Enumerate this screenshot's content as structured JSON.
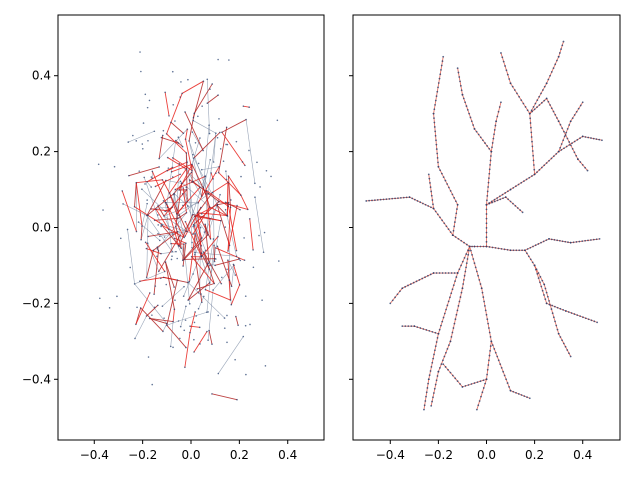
{
  "figure": {
    "background": "#ffffff"
  },
  "colors": {
    "node": "#1f3b6b",
    "edge_light": "#7f8fa6",
    "edge_strong": "#b22222",
    "edge_red": "#e8201a",
    "tree_edge": "#e05a4a"
  },
  "chart_data": [
    {
      "type": "network",
      "panel": "left",
      "title": "",
      "xlabel": "",
      "ylabel": "",
      "xlim": [
        -0.55,
        0.55
      ],
      "ylim": [
        -0.56,
        0.56
      ],
      "xticks": [
        -0.4,
        -0.2,
        0.0,
        0.2,
        0.4
      ],
      "xtick_labels": [
        "−0.4",
        "−0.2",
        "0.0",
        "0.2",
        "0.4"
      ],
      "yticks": [
        -0.4,
        -0.2,
        0.0,
        0.2,
        0.4
      ],
      "ytick_labels": [
        "−0.4",
        "−0.2",
        "0.0",
        "0.2",
        "0.4"
      ],
      "grid": false,
      "description_points": {
        "extent_x": [
          -0.5,
          0.5
        ],
        "extent_y": [
          -0.5,
          0.5
        ],
        "approx_edges": 1400
      }
    },
    {
      "type": "network",
      "panel": "right",
      "title": "",
      "xlabel": "",
      "ylabel": "",
      "xlim": [
        -0.555,
        0.555
      ],
      "ylim": [
        -0.56,
        0.56
      ],
      "shared_y": true,
      "xticks": [
        -0.4,
        -0.2,
        0.0,
        0.2,
        0.4
      ],
      "xtick_labels": [
        "−0.4",
        "−0.2",
        "0.0",
        "0.2",
        "0.4"
      ],
      "grid": false,
      "tree_root": [
        0.0,
        -0.05
      ],
      "branches": [
        [
          [
            0.0,
            -0.05
          ],
          [
            -0.05,
            -0.05
          ],
          [
            -0.07,
            -0.05
          ]
        ],
        [
          [
            -0.07,
            -0.05
          ],
          [
            -0.12,
            -0.12
          ],
          [
            -0.2,
            -0.28
          ],
          [
            -0.24,
            -0.4
          ],
          [
            -0.26,
            -0.48
          ]
        ],
        [
          [
            -0.2,
            -0.28
          ],
          [
            -0.3,
            -0.26
          ],
          [
            -0.35,
            -0.26
          ]
        ],
        [
          [
            -0.12,
            -0.12
          ],
          [
            -0.22,
            -0.12
          ],
          [
            -0.35,
            -0.16
          ],
          [
            -0.4,
            -0.2
          ]
        ],
        [
          [
            -0.07,
            -0.05
          ],
          [
            -0.14,
            -0.02
          ],
          [
            -0.22,
            0.05
          ],
          [
            -0.32,
            0.08
          ],
          [
            -0.5,
            0.07
          ]
        ],
        [
          [
            -0.22,
            0.05
          ],
          [
            -0.24,
            0.14
          ]
        ],
        [
          [
            -0.14,
            -0.02
          ],
          [
            -0.12,
            0.06
          ],
          [
            -0.2,
            0.16
          ],
          [
            -0.22,
            0.3
          ],
          [
            -0.18,
            0.45
          ]
        ],
        [
          [
            -0.07,
            -0.05
          ],
          [
            -0.1,
            -0.16
          ],
          [
            -0.15,
            -0.3
          ],
          [
            -0.2,
            -0.38
          ],
          [
            -0.23,
            -0.47
          ]
        ],
        [
          [
            0.0,
            -0.05
          ],
          [
            0.0,
            0.06
          ],
          [
            0.02,
            0.2
          ],
          [
            0.04,
            0.28
          ],
          [
            0.06,
            0.33
          ]
        ],
        [
          [
            0.02,
            0.2
          ],
          [
            -0.05,
            0.26
          ],
          [
            -0.1,
            0.35
          ],
          [
            -0.12,
            0.42
          ]
        ],
        [
          [
            0.0,
            0.06
          ],
          [
            0.08,
            0.08
          ],
          [
            0.15,
            0.04
          ]
        ],
        [
          [
            0.0,
            -0.05
          ],
          [
            0.1,
            -0.06
          ],
          [
            0.16,
            -0.06
          ],
          [
            0.2,
            -0.1
          ],
          [
            0.24,
            -0.15
          ],
          [
            0.3,
            -0.28
          ],
          [
            0.35,
            -0.34
          ]
        ],
        [
          [
            0.16,
            -0.06
          ],
          [
            0.26,
            -0.03
          ],
          [
            0.35,
            -0.04
          ],
          [
            0.47,
            -0.03
          ]
        ],
        [
          [
            0.2,
            -0.1
          ],
          [
            0.25,
            -0.2
          ],
          [
            0.33,
            -0.22
          ],
          [
            0.46,
            -0.25
          ]
        ],
        [
          [
            0.0,
            0.06
          ],
          [
            0.1,
            0.1
          ],
          [
            0.2,
            0.14
          ],
          [
            0.3,
            0.2
          ],
          [
            0.4,
            0.24
          ],
          [
            0.48,
            0.23
          ]
        ],
        [
          [
            0.3,
            0.2
          ],
          [
            0.35,
            0.28
          ],
          [
            0.4,
            0.33
          ]
        ],
        [
          [
            0.2,
            0.14
          ],
          [
            0.18,
            0.3
          ],
          [
            0.1,
            0.38
          ],
          [
            0.06,
            0.46
          ]
        ],
        [
          [
            0.18,
            0.3
          ],
          [
            0.25,
            0.38
          ],
          [
            0.3,
            0.45
          ],
          [
            0.32,
            0.49
          ]
        ],
        [
          [
            0.18,
            0.3
          ],
          [
            0.25,
            0.34
          ],
          [
            0.3,
            0.28
          ],
          [
            0.38,
            0.18
          ],
          [
            0.42,
            0.15
          ]
        ],
        [
          [
            -0.07,
            -0.05
          ],
          [
            -0.02,
            -0.16
          ],
          [
            0.02,
            -0.3
          ],
          [
            0.0,
            -0.4
          ],
          [
            -0.04,
            -0.48
          ]
        ],
        [
          [
            0.02,
            -0.3
          ],
          [
            0.1,
            -0.43
          ],
          [
            0.18,
            -0.45
          ]
        ],
        [
          [
            0.0,
            -0.4
          ],
          [
            -0.1,
            -0.42
          ],
          [
            -0.18,
            -0.36
          ]
        ]
      ]
    }
  ]
}
